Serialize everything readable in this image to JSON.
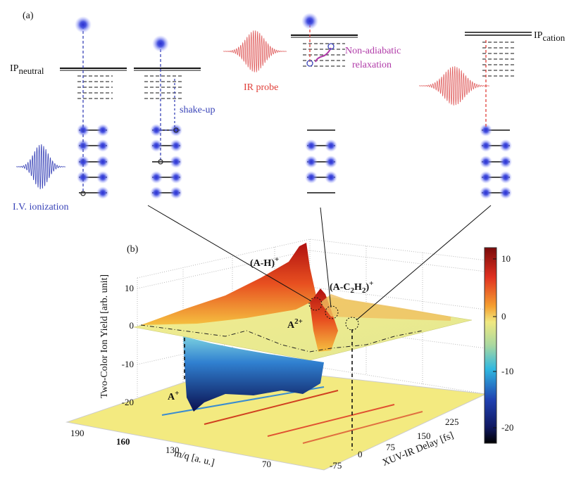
{
  "panel_a": {
    "label": "(a)",
    "ip_neutral": {
      "main": "IP",
      "sub": "neutral"
    },
    "ip_cation": {
      "main": "IP",
      "sub": "cation"
    },
    "shake_up": "shake-up",
    "iv_ionization": "I.V. ionization",
    "ir_probe": "IR probe",
    "relaxation": [
      "Non-adiabatic",
      "relaxation"
    ]
  },
  "panel_b": {
    "label": "(b)",
    "z_axis_label": "Two-Color Ion Yield [arb. unit]",
    "mq_axis_label": "m/q [a. u.]",
    "delay_axis_label": "XUV-IR Delay [fs]",
    "z_ticks": [
      10,
      0,
      -10,
      -20
    ],
    "mq_ticks": [
      190,
      160,
      130,
      70
    ],
    "delay_ticks": [
      -75,
      0,
      75,
      150,
      225
    ],
    "colorbar_ticks": [
      10,
      0,
      -10,
      -20
    ],
    "peak_a_h": {
      "main": "(A-H)",
      "sup": "+"
    },
    "peak_a_c2h2": {
      "parts": [
        "(A-C",
        "2",
        "H",
        "2",
        ")"
      ],
      "sup": "+"
    },
    "peak_a2": {
      "main": "A",
      "sup": "2+"
    },
    "peak_a1": {
      "main": "A",
      "sup": "+"
    }
  }
}
